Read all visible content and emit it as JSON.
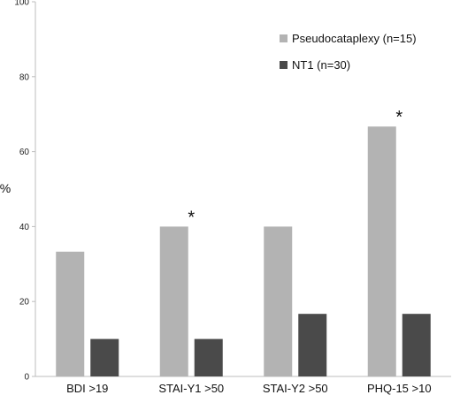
{
  "chart_data": {
    "type": "bar",
    "categories": [
      "BDI >19",
      "STAI-Y1 >50",
      "STAI-Y2 >50",
      "PHQ-15 >10"
    ],
    "series": [
      {
        "name": "Pseudocataplexy (n=15)",
        "values": [
          33.3,
          40.0,
          40.0,
          66.7
        ],
        "color": "#b3b3b3"
      },
      {
        "name": "NT1 (n=30)",
        "values": [
          10.0,
          10.0,
          16.7,
          16.7
        ],
        "color": "#4a4a4a"
      }
    ],
    "ylabel": "%",
    "xlabel": "",
    "ylim": [
      0,
      100
    ],
    "yticks": [
      0,
      20,
      40,
      60,
      80,
      100
    ],
    "legend_position": "top-right",
    "grid": false,
    "annotations": [
      {
        "text": "*",
        "category": "STAI-Y1 >50"
      },
      {
        "text": "*",
        "category": "PHQ-15 >10"
      }
    ]
  }
}
